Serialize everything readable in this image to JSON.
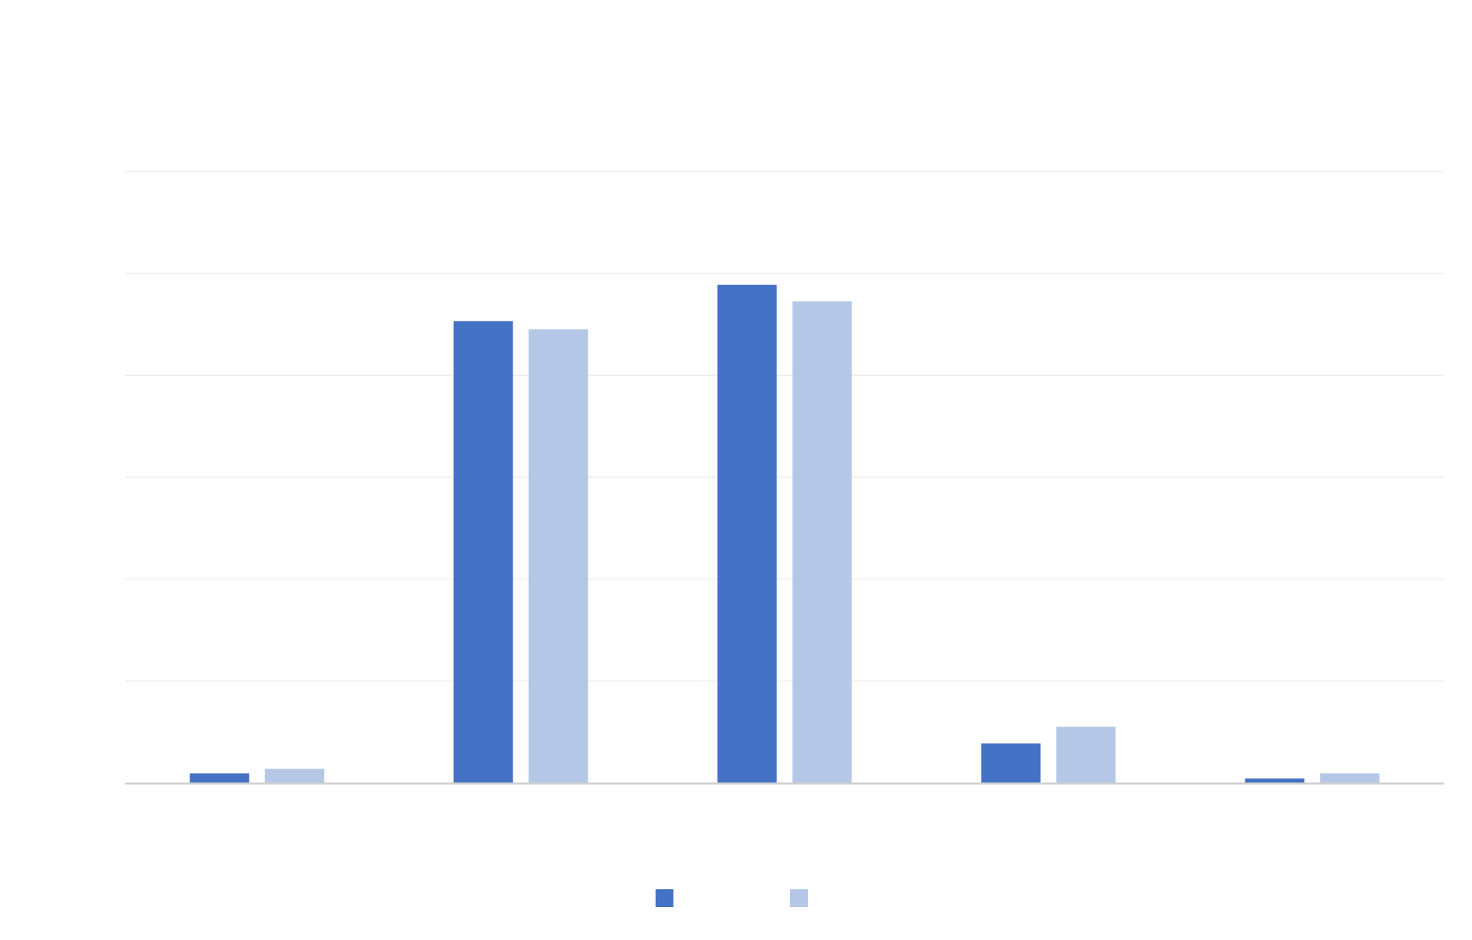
{
  "chart_data": {
    "type": "bar",
    "title": "",
    "xlabel": "",
    "ylabel": "",
    "categories": [
      "",
      "",
      "",
      "",
      ""
    ],
    "series": [
      {
        "name": "",
        "color": "#4472C4",
        "values": [
          1.5,
          72.5,
          78.2,
          6.2,
          0.7
        ]
      },
      {
        "name": "",
        "color": "#B4C7E7",
        "values": [
          2.2,
          71.2,
          75.6,
          8.8,
          1.5
        ]
      }
    ],
    "ylim": [
      0,
      96
    ],
    "gridline_step": 16,
    "grid": true,
    "legend_position": "bottom",
    "colors": {
      "gridline": "#e6e6e6",
      "axis": "#d0d0d0"
    }
  }
}
